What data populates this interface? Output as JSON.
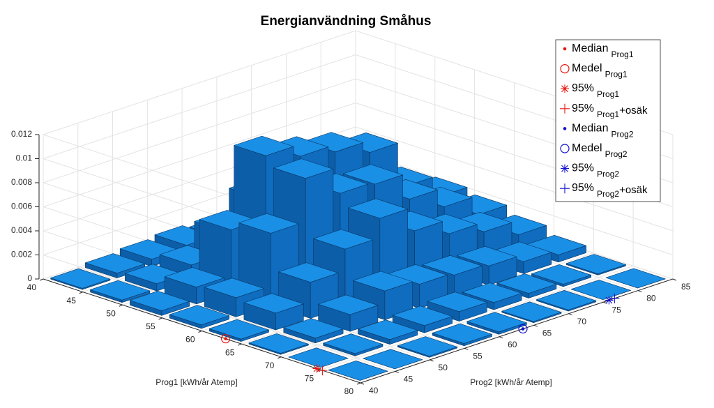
{
  "chart_data": {
    "type": "bar3",
    "title": "Energianvändning Småhus",
    "xlabel": "Prog1 [kWh/år Atemp]",
    "ylabel": "Prog2 [kWh/år Atemp]",
    "xbins": [
      40,
      45,
      50,
      55,
      60,
      65,
      70,
      75,
      80
    ],
    "ybins": [
      40,
      45,
      50,
      55,
      60,
      65,
      70,
      75,
      80,
      85
    ],
    "values": [
      [
        0.0001,
        0.0004,
        0.0006,
        0.0008,
        0.0005,
        0.0003,
        0.0002,
        0.0001,
        0
      ],
      [
        0.0002,
        0.0006,
        0.0012,
        0.003,
        0.0048,
        0.0036,
        0.0024,
        0.001,
        0.0004
      ],
      [
        0.0004,
        0.0014,
        0.0052,
        0.0104,
        0.0094,
        0.0088,
        0.0078,
        0.004,
        0.0022
      ],
      [
        0.0003,
        0.0016,
        0.006,
        0.0096,
        0.0074,
        0.0072,
        0.005,
        0.0034,
        0.0018
      ],
      [
        0.0002,
        0.0014,
        0.003,
        0.0048,
        0.0064,
        0.0044,
        0.0032,
        0.0024,
        0.0012
      ],
      [
        0.0001,
        0.0004,
        0.0014,
        0.0024,
        0.002,
        0.0018,
        0.0016,
        0.001,
        0.0006
      ],
      [
        0,
        0.0002,
        0.0004,
        0.0006,
        0.0008,
        0.0006,
        0.0004,
        0.0002,
        0.0001
      ],
      [
        0,
        0,
        0.0001,
        0.0002,
        0.0002,
        0.0001,
        0.0001,
        0,
        0
      ]
    ],
    "color": "#1a8fe6",
    "xlim": [
      40,
      80
    ],
    "xticks": [
      40,
      45,
      50,
      55,
      60,
      65,
      70,
      75,
      80
    ],
    "ylim": [
      40,
      85
    ],
    "yticks": [
      40,
      45,
      50,
      55,
      60,
      65,
      70,
      75,
      80,
      85
    ],
    "zlim": [
      0,
      0.012
    ],
    "zticks": [
      0,
      0.002,
      0.004,
      0.006,
      0.008,
      0.01,
      0.012
    ],
    "grid": true,
    "legend_position": "upper right",
    "markers": [
      {
        "label": "Median",
        "sub": "Prog1",
        "color": "#e8150f",
        "marker": "dot",
        "x": 63
      },
      {
        "label": "Medel",
        "sub": "Prog1",
        "color": "#e8150f",
        "marker": "circle",
        "x": 63
      },
      {
        "label": "95%",
        "sub": "Prog1",
        "color": "#e8150f",
        "marker": "asterisk",
        "x": 74.5
      },
      {
        "label": "95%",
        "sub": "Prog1",
        "suffix": "+osäk",
        "color": "#e8150f",
        "marker": "plus",
        "x": 75.2
      },
      {
        "label": "Median",
        "sub": "Prog2",
        "color": "#1010d0",
        "marker": "dot",
        "y": 63.4
      },
      {
        "label": "Medel",
        "sub": "Prog2",
        "color": "#1010d0",
        "marker": "circle",
        "y": 63.4
      },
      {
        "label": "95%",
        "sub": "Prog2",
        "color": "#1010d0",
        "marker": "asterisk",
        "y": 75.8
      },
      {
        "label": "95%",
        "sub": "Prog2",
        "suffix": "+osäk",
        "color": "#1010d0",
        "marker": "plus",
        "y": 76.6
      }
    ]
  }
}
